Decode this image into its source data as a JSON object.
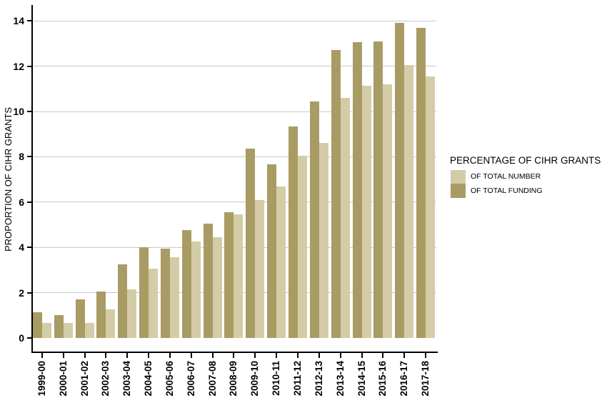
{
  "chart_data": {
    "type": "bar",
    "title": "",
    "xlabel": "",
    "ylabel": "PROPORTION OF CIHR GRANTS",
    "ylim": [
      0,
      14
    ],
    "yticks": [
      0,
      2,
      4,
      6,
      8,
      10,
      12,
      14
    ],
    "grid": "horizontal gridlines at y ticks, light gray, no vertical grid",
    "legend": {
      "title": "PERCENTAGE OF CIHR GRANTS",
      "position": "right"
    },
    "categories": [
      "1999-00",
      "2000-01",
      "2001-02",
      "2002-03",
      "2003-04",
      "2004-05",
      "2005-06",
      "2006-07",
      "2007-08",
      "2008-09",
      "2009-10",
      "2010-11",
      "2011-12",
      "2012-13",
      "2013-14",
      "2014-15",
      "2015-16",
      "2016-17",
      "2017-18"
    ],
    "series": [
      {
        "name": "OF TOTAL NUMBER",
        "color": "#d3cca6",
        "values": [
          0.65,
          0.65,
          0.65,
          1.25,
          2.15,
          3.05,
          3.55,
          4.25,
          4.45,
          5.45,
          6.1,
          6.7,
          8.05,
          8.6,
          10.6,
          11.15,
          11.2,
          12.05,
          11.55
        ]
      },
      {
        "name": "OF TOTAL FUNDING",
        "color": "#a89c64",
        "values": [
          1.15,
          1.0,
          1.7,
          2.05,
          3.25,
          4.0,
          3.95,
          4.75,
          5.05,
          5.55,
          8.35,
          7.65,
          9.35,
          10.45,
          12.7,
          13.05,
          13.1,
          13.9,
          13.7
        ]
      }
    ]
  },
  "colors": {
    "background": "#ffffff",
    "axis": "#000000",
    "gridline": "#c9c9c9",
    "text": "#000000"
  }
}
